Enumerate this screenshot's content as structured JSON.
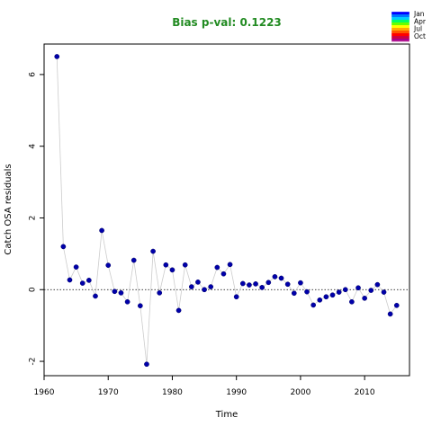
{
  "chart_data": {
    "type": "scatter",
    "title": "Bias p-val: 0.1223",
    "title_color": "#228B22",
    "xlabel": "Time",
    "ylabel": "Catch OSA residuals",
    "xlim": [
      1960,
      2017
    ],
    "ylim": [
      -2.4,
      6.85
    ],
    "xticks": [
      1960,
      1970,
      1980,
      1990,
      2000,
      2010
    ],
    "yticks": [
      -2,
      0,
      2,
      4,
      6
    ],
    "reference_line_y": 0,
    "grid": false,
    "connect_points": true,
    "point_color": "#0000AA",
    "line_color": "#cccccc",
    "legend": {
      "placement": "top-right",
      "entries": [
        "Jan",
        "Apr",
        "Jul",
        "Oct"
      ],
      "gradient_colors": [
        "#0000ff",
        "#0077ff",
        "#00ccff",
        "#00ff66",
        "#66ff00",
        "#ffff00",
        "#ffaa00",
        "#ff5500",
        "#ff0000",
        "#cc0044",
        "#aa0088"
      ]
    },
    "x": [
      1962,
      1963,
      1964,
      1965,
      1966,
      1967,
      1968,
      1969,
      1970,
      1971,
      1972,
      1973,
      1974,
      1975,
      1976,
      1977,
      1978,
      1979,
      1980,
      1981,
      1982,
      1983,
      1984,
      1985,
      1986,
      1987,
      1988,
      1989,
      1990,
      1991,
      1992,
      1993,
      1994,
      1995,
      1996,
      1997,
      1998,
      1999,
      2000,
      2001,
      2002,
      2003,
      2004,
      2005,
      2006,
      2007,
      2008,
      2009,
      2010,
      2011,
      2012,
      2013,
      2014,
      2015
    ],
    "y": [
      6.5,
      1.2,
      0.27,
      0.63,
      0.18,
      0.26,
      -0.18,
      1.65,
      0.68,
      -0.05,
      -0.09,
      -0.34,
      0.82,
      -0.45,
      -2.08,
      1.07,
      -0.09,
      0.69,
      0.55,
      -0.58,
      0.69,
      0.08,
      0.21,
      0.0,
      0.08,
      0.62,
      0.44,
      0.7,
      -0.2,
      0.17,
      0.13,
      0.16,
      0.06,
      0.2,
      0.36,
      0.32,
      0.15,
      -0.1,
      0.19,
      -0.06,
      -0.43,
      -0.29,
      -0.2,
      -0.15,
      -0.07,
      0.0,
      -0.34,
      0.05,
      -0.24,
      -0.02,
      0.14,
      -0.07,
      -0.68,
      -0.44
    ]
  }
}
